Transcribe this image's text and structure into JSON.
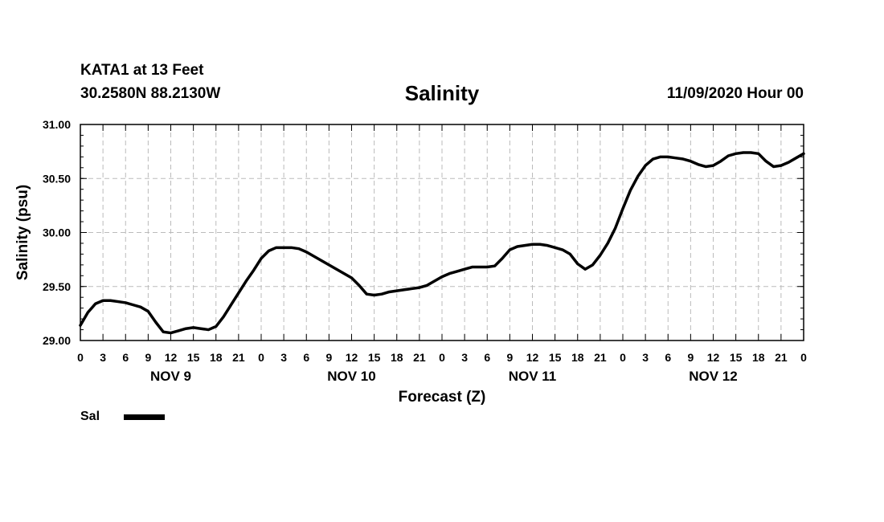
{
  "header": {
    "station": "KATA1 at 13 Feet",
    "coordinates": "30.2580N 88.2130W",
    "title": "Salinity",
    "datetime": "11/09/2020 Hour 00"
  },
  "legend": {
    "label": "Sal",
    "color": "#000000"
  },
  "chart_data": {
    "type": "line",
    "title": "Salinity",
    "xlabel": "Forecast (Z)",
    "ylabel": "Salinity (psu)",
    "ylim": [
      29.0,
      31.0
    ],
    "yticks": [
      "29.00",
      "29.50",
      "30.00",
      "30.50",
      "31.00"
    ],
    "xlim": [
      0,
      96
    ],
    "xticks": [
      "0",
      "3",
      "6",
      "9",
      "12",
      "15",
      "18",
      "21",
      "0",
      "3",
      "6",
      "9",
      "12",
      "15",
      "18",
      "21",
      "0",
      "3",
      "6",
      "9",
      "12",
      "15",
      "18",
      "21",
      "0",
      "3",
      "6",
      "9",
      "12",
      "15",
      "18",
      "21",
      "0"
    ],
    "day_labels": [
      {
        "label": "NOV 9",
        "hour": 12
      },
      {
        "label": "NOV 10",
        "hour": 36
      },
      {
        "label": "NOV 11",
        "hour": 60
      },
      {
        "label": "NOV 12",
        "hour": 84
      }
    ],
    "grid": true,
    "series": [
      {
        "name": "Sal",
        "x": [
          0,
          1,
          2,
          3,
          4,
          5,
          6,
          7,
          8,
          9,
          10,
          11,
          12,
          13,
          14,
          15,
          16,
          17,
          18,
          19,
          20,
          21,
          22,
          23,
          24,
          25,
          26,
          27,
          28,
          29,
          30,
          31,
          32,
          33,
          34,
          35,
          36,
          37,
          38,
          39,
          40,
          41,
          42,
          43,
          44,
          45,
          46,
          47,
          48,
          49,
          50,
          51,
          52,
          53,
          54,
          55,
          56,
          57,
          58,
          59,
          60,
          61,
          62,
          63,
          64,
          65,
          66,
          67,
          68,
          69,
          70,
          71,
          72,
          73,
          74,
          75,
          76,
          77,
          78,
          79,
          80,
          81,
          82,
          83,
          84,
          85,
          86,
          87,
          88,
          89,
          90,
          91,
          92,
          93,
          94,
          95,
          96
        ],
        "values": [
          29.14,
          29.26,
          29.34,
          29.37,
          29.37,
          29.36,
          29.35,
          29.33,
          29.31,
          29.27,
          29.17,
          29.08,
          29.07,
          29.09,
          29.11,
          29.12,
          29.11,
          29.1,
          29.13,
          29.22,
          29.33,
          29.44,
          29.55,
          29.65,
          29.76,
          29.83,
          29.86,
          29.86,
          29.86,
          29.85,
          29.82,
          29.78,
          29.74,
          29.7,
          29.66,
          29.62,
          29.58,
          29.51,
          29.43,
          29.42,
          29.43,
          29.45,
          29.46,
          29.47,
          29.48,
          29.49,
          29.51,
          29.55,
          29.59,
          29.62,
          29.64,
          29.66,
          29.68,
          29.68,
          29.68,
          29.69,
          29.76,
          29.84,
          29.87,
          29.88,
          29.89,
          29.89,
          29.88,
          29.86,
          29.84,
          29.8,
          29.71,
          29.66,
          29.7,
          29.79,
          29.9,
          30.04,
          30.22,
          30.39,
          30.52,
          30.62,
          30.68,
          30.7,
          30.7,
          30.69,
          30.68,
          30.66,
          30.63,
          30.61,
          30.62,
          30.66,
          30.71,
          30.73,
          30.74,
          30.74,
          30.73,
          30.66,
          30.61,
          30.62,
          30.65,
          30.69,
          30.73
        ]
      }
    ]
  }
}
